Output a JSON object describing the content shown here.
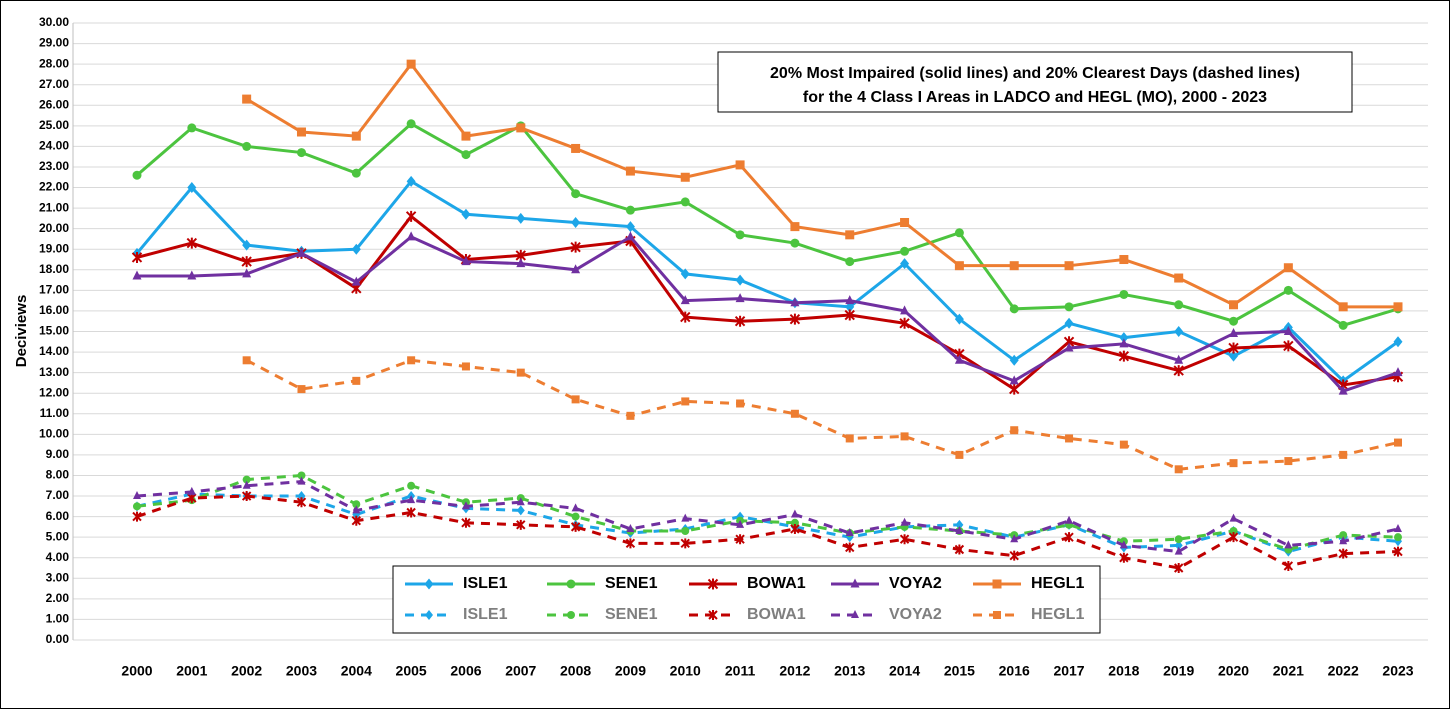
{
  "chart_data": {
    "type": "line",
    "title": "20% Most Impaired (solid lines) and 20% Clearest Days (dashed lines)",
    "subtitle": "for the 4 Class I Areas in LADCO and HEGL (MO), 2000 - 2023",
    "y_label": "Deciviews",
    "categories": [
      "2000",
      "2001",
      "2002",
      "2003",
      "2004",
      "2005",
      "2006",
      "2007",
      "2008",
      "2009",
      "2010",
      "2011",
      "2012",
      "2013",
      "2014",
      "2015",
      "2016",
      "2017",
      "2018",
      "2019",
      "2020",
      "2021",
      "2022",
      "2023"
    ],
    "ylim": [
      0,
      30
    ],
    "yticks": [
      {
        "value": 0,
        "label": "0.00"
      },
      {
        "value": 1,
        "label": "1.00"
      },
      {
        "value": 2,
        "label": "2.00"
      },
      {
        "value": 3,
        "label": "3.00"
      },
      {
        "value": 4,
        "label": "4.00"
      },
      {
        "value": 5,
        "label": "5.00"
      },
      {
        "value": 6,
        "label": "6.00"
      },
      {
        "value": 7,
        "label": "7.00"
      },
      {
        "value": 8,
        "label": "8.00"
      },
      {
        "value": 9,
        "label": "9.00"
      },
      {
        "value": 10,
        "label": "10.00"
      },
      {
        "value": 11,
        "label": "11.00"
      },
      {
        "value": 12,
        "label": "12.00"
      },
      {
        "value": 13,
        "label": "13.00"
      },
      {
        "value": 14,
        "label": "14.00"
      },
      {
        "value": 15,
        "label": "15.00"
      },
      {
        "value": 16,
        "label": "16.00"
      },
      {
        "value": 17,
        "label": "17.00"
      },
      {
        "value": 18,
        "label": "18.00"
      },
      {
        "value": 19,
        "label": "19.00"
      },
      {
        "value": 20,
        "label": "20.00"
      },
      {
        "value": 21,
        "label": "21.00"
      },
      {
        "value": 22,
        "label": "22.00"
      },
      {
        "value": 23,
        "label": "23.00"
      },
      {
        "value": 24,
        "label": "24.00"
      },
      {
        "value": 25,
        "label": "25.00"
      },
      {
        "value": 26,
        "label": "26.00"
      },
      {
        "value": 27,
        "label": "27.00"
      },
      {
        "value": 28,
        "label": "28.00"
      },
      {
        "value": 29,
        "label": "29.00"
      },
      {
        "value": 30,
        "label": "30.00"
      }
    ],
    "grid": true,
    "series": [
      {
        "name": "ISLE1",
        "color": "#1da6e8",
        "dash": false,
        "marker": "diamond",
        "values": [
          18.8,
          22.0,
          19.2,
          18.9,
          19.0,
          22.3,
          20.7,
          20.5,
          20.3,
          20.1,
          17.8,
          17.5,
          16.4,
          16.2,
          18.3,
          15.6,
          13.6,
          15.4,
          14.7,
          15.0,
          13.8,
          15.2,
          12.6,
          14.5
        ]
      },
      {
        "name": "SENE1",
        "color": "#4cc43f",
        "dash": false,
        "marker": "circle",
        "values": [
          22.6,
          24.9,
          24.0,
          23.7,
          22.7,
          25.1,
          23.6,
          25.0,
          21.7,
          20.9,
          21.3,
          19.7,
          19.3,
          18.4,
          18.9,
          19.8,
          16.1,
          16.2,
          16.8,
          16.3,
          15.5,
          17.0,
          15.3,
          16.1
        ]
      },
      {
        "name": "BOWA1",
        "color": "#c00000",
        "dash": false,
        "marker": "star",
        "values": [
          18.6,
          19.3,
          18.4,
          18.8,
          17.1,
          20.6,
          18.5,
          18.7,
          19.1,
          19.4,
          15.7,
          15.5,
          15.6,
          15.8,
          15.4,
          13.9,
          12.2,
          14.5,
          13.8,
          13.1,
          14.2,
          14.3,
          12.4,
          12.8
        ]
      },
      {
        "name": "VOYA2",
        "color": "#7030a0",
        "dash": false,
        "marker": "triangle",
        "values": [
          17.7,
          17.7,
          17.8,
          18.8,
          17.4,
          19.6,
          18.4,
          18.3,
          18.0,
          19.6,
          16.5,
          16.6,
          16.4,
          16.5,
          16.0,
          13.6,
          12.6,
          14.2,
          14.4,
          13.6,
          14.9,
          15.0,
          12.1,
          13.0
        ]
      },
      {
        "name": "HEGL1",
        "color": "#ed7d31",
        "dash": false,
        "marker": "square",
        "values": [
          null,
          null,
          26.3,
          24.7,
          24.5,
          28.0,
          24.5,
          24.9,
          23.9,
          22.8,
          22.5,
          23.1,
          20.1,
          19.7,
          20.3,
          18.2,
          18.2,
          18.2,
          18.5,
          17.6,
          16.3,
          18.1,
          16.2,
          16.2
        ]
      },
      {
        "name": "ISLE1",
        "color": "#1da6e8",
        "dash": true,
        "marker": "diamond",
        "values": [
          6.5,
          7.1,
          7.0,
          7.0,
          6.1,
          7.0,
          6.4,
          6.3,
          5.6,
          5.2,
          5.4,
          6.0,
          5.5,
          5.0,
          5.5,
          5.6,
          5.0,
          5.6,
          4.5,
          4.6,
          5.3,
          4.3,
          5.0,
          4.8
        ]
      },
      {
        "name": "SENE1",
        "color": "#4cc43f",
        "dash": true,
        "marker": "circle",
        "values": [
          6.5,
          6.8,
          7.8,
          8.0,
          6.6,
          7.5,
          6.7,
          6.9,
          6.0,
          5.3,
          5.3,
          5.8,
          5.7,
          5.2,
          5.5,
          5.3,
          5.1,
          5.6,
          4.8,
          4.9,
          5.3,
          4.4,
          5.1,
          5.0
        ]
      },
      {
        "name": "BOWA1",
        "color": "#c00000",
        "dash": true,
        "marker": "star",
        "values": [
          6.0,
          6.9,
          7.0,
          6.7,
          5.8,
          6.2,
          5.7,
          5.6,
          5.5,
          4.7,
          4.7,
          4.9,
          5.4,
          4.5,
          4.9,
          4.4,
          4.1,
          5.0,
          4.0,
          3.5,
          5.0,
          3.6,
          4.2,
          4.3
        ]
      },
      {
        "name": "VOYA2",
        "color": "#7030a0",
        "dash": true,
        "marker": "triangle",
        "values": [
          7.0,
          7.2,
          7.5,
          7.7,
          6.3,
          6.8,
          6.5,
          6.7,
          6.4,
          5.4,
          5.9,
          5.6,
          6.1,
          5.2,
          5.7,
          5.3,
          4.9,
          5.8,
          4.6,
          4.3,
          5.9,
          4.6,
          4.8,
          5.4
        ]
      },
      {
        "name": "HEGL1",
        "color": "#ed7d31",
        "dash": true,
        "marker": "square",
        "values": [
          null,
          null,
          13.6,
          12.2,
          12.6,
          13.6,
          13.3,
          13.0,
          11.7,
          10.9,
          11.6,
          11.5,
          11.0,
          9.8,
          9.9,
          9.0,
          10.2,
          9.8,
          9.5,
          8.3,
          8.6,
          8.7,
          9.0,
          9.6
        ]
      }
    ]
  }
}
